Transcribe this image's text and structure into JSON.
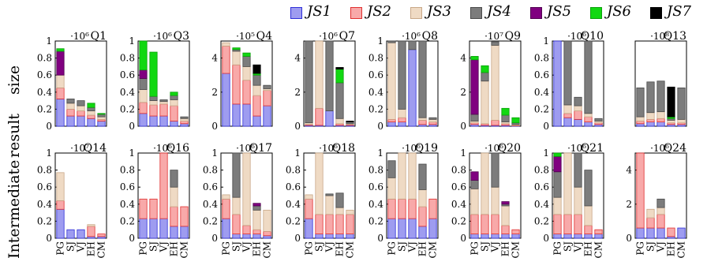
{
  "y_axis_title_lines": [
    "Intermediate",
    "result",
    "size"
  ],
  "legend": [
    {
      "label": "JS1",
      "color": "#9e9cf0",
      "stroke": "#2f2fd8"
    },
    {
      "label": "JS2",
      "color": "#f8a9a9",
      "stroke": "#e03030"
    },
    {
      "label": "JS3",
      "color": "#efdac4",
      "stroke": "#c9a888"
    },
    {
      "label": "JS4",
      "color": "#7c7c7c",
      "stroke": "#4a4a4a"
    },
    {
      "label": "JS5",
      "color": "#800080",
      "stroke": "#500050"
    },
    {
      "label": "JS6",
      "color": "#11d811",
      "stroke": "#0aa00a"
    },
    {
      "label": "JS7",
      "color": "#000000",
      "stroke": "#000000"
    }
  ],
  "chart_data": [
    {
      "type": "bar",
      "stacked": true,
      "title": "Q1",
      "multiplier": "·10⁶",
      "ylim": [
        0,
        1
      ],
      "yticks": [
        0,
        0.2,
        0.4,
        0.6,
        0.8,
        1
      ],
      "categories": [
        "PG",
        "SJ",
        "VJ",
        "EH",
        "CM"
      ],
      "stacks": [
        [
          0.32,
          0.13,
          0.15,
          0,
          0.28,
          0.03
        ],
        [
          0.12,
          0.08,
          0.07,
          0.05,
          0,
          0
        ],
        [
          0.12,
          0.06,
          0.06,
          0.06,
          0,
          0
        ],
        [
          0.09,
          0.04,
          0.05,
          0.04,
          0,
          0.05
        ],
        [
          0.06,
          0.02,
          0.03,
          0.03,
          0,
          0.01
        ]
      ]
    },
    {
      "type": "bar",
      "stacked": true,
      "title": "Q3",
      "multiplier": "·10⁶",
      "ylim": [
        0,
        1
      ],
      "yticks": [
        0,
        0.2,
        0.4,
        0.6,
        0.8,
        1
      ],
      "categories": [
        "PG",
        "SJ",
        "VJ",
        "EH",
        "CM"
      ],
      "stacks": [
        [
          0.15,
          0.13,
          0.15,
          0.13,
          0.1,
          0.34
        ],
        [
          0.12,
          0.13,
          0.05,
          0.05,
          0,
          0.52
        ],
        [
          0.12,
          0.14,
          0.03,
          0.02,
          0,
          0
        ],
        [
          0.06,
          0.18,
          0.07,
          0.05,
          0,
          0.04
        ],
        [
          0.03,
          0.03,
          0.03,
          0.02,
          0,
          0
        ]
      ]
    },
    {
      "type": "bar",
      "stacked": true,
      "title": "Q4",
      "multiplier": "·10⁵",
      "ylim": [
        0,
        5
      ],
      "yticks": [
        0,
        2,
        4
      ],
      "categories": [
        "PG",
        "SJ",
        "VJ",
        "EH",
        "CM"
      ],
      "stacks": [
        [
          3.1,
          1.6,
          0.2,
          0,
          0,
          0,
          0
        ],
        [
          1.3,
          2.3,
          0.8,
          0.1,
          0,
          0.1,
          0
        ],
        [
          1.3,
          1.4,
          0.8,
          0.6,
          0,
          0.2,
          0
        ],
        [
          0.6,
          1.2,
          0.6,
          0.6,
          0,
          0.1,
          0.5
        ],
        [
          1.2,
          0.9,
          0.1,
          0.2,
          0,
          0,
          0
        ]
      ]
    },
    {
      "type": "bar",
      "stacked": true,
      "title": "Q7",
      "multiplier": "·10⁶",
      "ylim": [
        0,
        5
      ],
      "yticks": [
        0,
        2,
        4
      ],
      "categories": [
        "PG",
        "SJ",
        "VJ",
        "EH",
        "CM"
      ],
      "stacks": [
        [
          0.05,
          0.05,
          0.1,
          4.8,
          0,
          0,
          0
        ],
        [
          0.05,
          1.0,
          4.0,
          0,
          0,
          0,
          0
        ],
        [
          0.9,
          0,
          0,
          4.1,
          0,
          0,
          0
        ],
        [
          0.05,
          0.1,
          0.3,
          2.1,
          0,
          0.8,
          0.1
        ],
        [
          0.05,
          0.05,
          0.05,
          0.1,
          0,
          0,
          0.05
        ]
      ]
    },
    {
      "type": "bar",
      "stacked": true,
      "title": "Q8",
      "multiplier": "·10⁶",
      "ylim": [
        0,
        1
      ],
      "yticks": [
        0,
        0.2,
        0.4,
        0.6,
        0.8,
        1
      ],
      "categories": [
        "PG",
        "SJ",
        "VJ",
        "EH",
        "CM"
      ],
      "stacks": [
        [
          0.05,
          0.03,
          0.9,
          0.02,
          0,
          0
        ],
        [
          0.05,
          0.05,
          0.1,
          0.8,
          0,
          0
        ],
        [
          0.9,
          0,
          0,
          0.1,
          0,
          0
        ],
        [
          0.02,
          0.05,
          0.03,
          0.9,
          0,
          0
        ],
        [
          0.02,
          0.03,
          0.03,
          0.02,
          0,
          0
        ]
      ]
    },
    {
      "type": "bar",
      "stacked": true,
      "title": "Q9",
      "multiplier": "·10⁷",
      "ylim": [
        0,
        5
      ],
      "yticks": [
        0,
        2,
        4
      ],
      "categories": [
        "PG",
        "SJ",
        "VJ",
        "EH",
        "CM"
      ],
      "stacks": [
        [
          0.1,
          0.1,
          0.1,
          0.4,
          3.2,
          0.2
        ],
        [
          0.05,
          0.1,
          2.5,
          0.5,
          0,
          0.4
        ],
        [
          0.05,
          0.3,
          4.4,
          0.2,
          0,
          0
        ],
        [
          0.05,
          0.1,
          0.1,
          0.4,
          0,
          0.4
        ],
        [
          0.02,
          0.03,
          0.05,
          0.1,
          0,
          0.3
        ]
      ]
    },
    {
      "type": "bar",
      "stacked": true,
      "title": "Q10",
      "multiplier": "·10⁶",
      "ylim": [
        0,
        1
      ],
      "yticks": [
        0,
        0.2,
        0.4,
        0.6,
        0.8,
        1
      ],
      "categories": [
        "PG",
        "SJ",
        "VJ",
        "EH",
        "CM"
      ],
      "stacks": [
        [
          1.0,
          0,
          0,
          0,
          0
        ],
        [
          0.1,
          0.05,
          0.1,
          0.75,
          0
        ],
        [
          0.08,
          0.1,
          0.06,
          0.1,
          0
        ],
        [
          0.05,
          0.06,
          0.04,
          0.85,
          0
        ],
        [
          0.02,
          0.02,
          0.02,
          0.03,
          0
        ]
      ]
    },
    {
      "type": "bar",
      "stacked": true,
      "title": "Q13",
      "multiplier": "·10⁸",
      "ylim": [
        0,
        1
      ],
      "yticks": [],
      "categories": [
        "PG",
        "SJ",
        "VJ",
        "EH",
        "CM"
      ],
      "stacks": [
        [
          0.03,
          0.03,
          0.05,
          0.34,
          0,
          0,
          0
        ],
        [
          0.05,
          0.03,
          0.08,
          0.36,
          0,
          0,
          0
        ],
        [
          0.05,
          0.04,
          0.08,
          0.36,
          0,
          0,
          0
        ],
        [
          0.02,
          0.02,
          0.03,
          0.02,
          0,
          0.02,
          0.35
        ],
        [
          0.02,
          0.02,
          0.04,
          0.37,
          0,
          0,
          0
        ]
      ]
    },
    {
      "type": "bar",
      "stacked": true,
      "title": "Q14",
      "multiplier": "·10⁷",
      "ylim": [
        0,
        1
      ],
      "yticks": [
        0,
        0.2,
        0.4,
        0.6,
        0.8,
        1
      ],
      "categories": [
        "PG",
        "SJ",
        "VJ",
        "EH",
        "CM"
      ],
      "stacks": [
        [
          0.34,
          0.1,
          0.33
        ],
        [
          0.1,
          0,
          0
        ],
        [
          0.1,
          0,
          0
        ],
        [
          0.02,
          0.12,
          0.02
        ],
        [
          0.02,
          0.03,
          0
        ]
      ]
    },
    {
      "type": "bar",
      "stacked": true,
      "title": "Q16",
      "multiplier": "·10⁶",
      "ylim": [
        0,
        1
      ],
      "yticks": [
        0,
        0.2,
        0.4,
        0.6,
        0.8,
        1
      ],
      "categories": [
        "PG",
        "SJ",
        "VJ",
        "EH",
        "CM"
      ],
      "stacks": [
        [
          0.23,
          0.23,
          0,
          0
        ],
        [
          0.23,
          0.23,
          0,
          0
        ],
        [
          0.23,
          0.77,
          0,
          0
        ],
        [
          0.14,
          0.23,
          0.23,
          0.2
        ],
        [
          0.14,
          0.23,
          0,
          0
        ]
      ]
    },
    {
      "type": "bar",
      "stacked": true,
      "title": "Q17",
      "multiplier": "·10⁶",
      "ylim": [
        0,
        1
      ],
      "yticks": [
        0,
        0.2,
        0.4,
        0.6,
        0.8,
        1
      ],
      "categories": [
        "PG",
        "SJ",
        "VJ",
        "EH",
        "CM"
      ],
      "stacks": [
        [
          0.23,
          0.23,
          0.05,
          0,
          0
        ],
        [
          0.05,
          0.23,
          0.2,
          0.52,
          0
        ],
        [
          0.05,
          0.1,
          0.85,
          0,
          0
        ],
        [
          0.05,
          0.05,
          0.23,
          0.05,
          0.03
        ],
        [
          0.03,
          0.05,
          0.25,
          0,
          0
        ]
      ]
    },
    {
      "type": "bar",
      "stacked": true,
      "title": "Q18",
      "multiplier": "·10⁶",
      "ylim": [
        0,
        1
      ],
      "yticks": [
        0,
        0.2,
        0.4,
        0.6,
        0.8,
        1
      ],
      "categories": [
        "PG",
        "SJ",
        "VJ",
        "EH",
        "CM"
      ],
      "stacks": [
        [
          0.23,
          0.23,
          0.05,
          0,
          0
        ],
        [
          0.05,
          0.23,
          0.72,
          0,
          0
        ],
        [
          0.05,
          0.23,
          0.22,
          0.02,
          0
        ],
        [
          0.05,
          0.23,
          0.08,
          0.17,
          0
        ],
        [
          0.05,
          0.23,
          0.05,
          0,
          0
        ]
      ]
    },
    {
      "type": "bar",
      "stacked": true,
      "title": "Q19",
      "multiplier": "·10⁶",
      "ylim": [
        0,
        1
      ],
      "yticks": [
        0,
        0.2,
        0.4,
        0.6,
        0.8,
        1
      ],
      "categories": [
        "PG",
        "SJ",
        "VJ",
        "EH",
        "CM"
      ],
      "stacks": [
        [
          0.23,
          0.23,
          0.25,
          0.2,
          0
        ],
        [
          0.23,
          0.23,
          0.54,
          0,
          0
        ],
        [
          0.23,
          0.23,
          0.54,
          0,
          0
        ],
        [
          0.14,
          0.23,
          0.2,
          0.3,
          0
        ],
        [
          0.23,
          0.23,
          0,
          0,
          0
        ]
      ]
    },
    {
      "type": "bar",
      "stacked": true,
      "title": "Q20",
      "multiplier": "·10⁶",
      "ylim": [
        0,
        1
      ],
      "yticks": [
        0,
        0.2,
        0.4,
        0.6,
        0.8,
        1
      ],
      "categories": [
        "PG",
        "SJ",
        "VJ",
        "EH",
        "CM"
      ],
      "stacks": [
        [
          0.05,
          0.23,
          0.3,
          0.1,
          0.1,
          0
        ],
        [
          0.05,
          0.23,
          0.72,
          0,
          0,
          0
        ],
        [
          0.05,
          0.23,
          0.32,
          0.4,
          0,
          0
        ],
        [
          0.05,
          0.1,
          0.23,
          0.02,
          0.03,
          0
        ],
        [
          0.05,
          0.05,
          0,
          0,
          0,
          0
        ]
      ]
    },
    {
      "type": "bar",
      "stacked": true,
      "title": "Q21",
      "multiplier": "·10⁶",
      "ylim": [
        0,
        1
      ],
      "yticks": [
        0,
        0.2,
        0.4,
        0.6,
        0.8,
        1
      ],
      "categories": [
        "PG",
        "SJ",
        "VJ",
        "EH",
        "CM"
      ],
      "stacks": [
        [
          0.05,
          0.23,
          0.2,
          0.3,
          0.18,
          0.04
        ],
        [
          0.05,
          0.23,
          0.72,
          0,
          0,
          0
        ],
        [
          0.05,
          0.23,
          0.32,
          0.4,
          0,
          0
        ],
        [
          0.05,
          0.1,
          0.23,
          0.42,
          0,
          0
        ],
        [
          0.05,
          0.05,
          0,
          0,
          0,
          0
        ]
      ]
    },
    {
      "type": "bar",
      "stacked": true,
      "title": "Q24",
      "multiplier": "·10⁶",
      "ylim": [
        0,
        5
      ],
      "yticks": [
        0,
        2,
        4
      ],
      "categories": [
        "PG",
        "SJ",
        "VJ",
        "EH",
        "CM"
      ],
      "stacks": [
        [
          0.6,
          4.6,
          0,
          0
        ],
        [
          0.6,
          0.6,
          0.5,
          0
        ],
        [
          0.6,
          0.8,
          0.4,
          0.5
        ],
        [
          0.1,
          0.5,
          0,
          0
        ],
        [
          0.6,
          0,
          0,
          0
        ]
      ]
    }
  ]
}
